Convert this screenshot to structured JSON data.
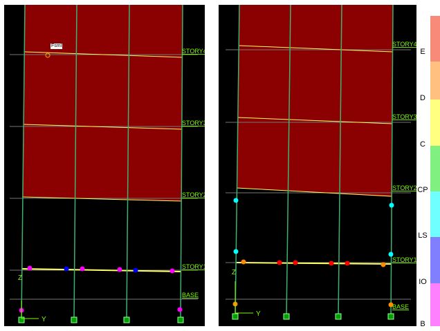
{
  "left_view": {
    "story_labels": [
      "STORY4",
      "STORY3",
      "STORY2",
      "STORY1",
      "BASE"
    ],
    "axis_vertical": "Z",
    "axis_horizontal": "Y",
    "frame_tag": "Fsml"
  },
  "right_view": {
    "story_labels": [
      "STORY4",
      "STORY3",
      "STORY2",
      "STORY1",
      "BASE"
    ],
    "axis_vertical": "Z",
    "axis_horizontal": "Y"
  },
  "legend": {
    "items": [
      {
        "label": "E",
        "color": "#F88A7A"
      },
      {
        "label": "D",
        "color": "#FFC080"
      },
      {
        "label": "C",
        "color": "#FFFF80"
      },
      {
        "label": "CP",
        "color": "#80F080"
      },
      {
        "label": "LS",
        "color": "#70FFFF"
      },
      {
        "label": "IO",
        "color": "#8080FF"
      },
      {
        "label": "B",
        "color": "#FF80FF"
      }
    ]
  },
  "colors": {
    "wall_fill": "#8B0000",
    "frame_line": "#3CB371",
    "beam_line": "#FFFF66",
    "hinge_magenta": "#FF00FF",
    "hinge_blue": "#0000FF",
    "hinge_cyan": "#00FFFF",
    "hinge_orange": "#FF8C00",
    "hinge_red": "#FF0000",
    "support": "#00A000"
  }
}
